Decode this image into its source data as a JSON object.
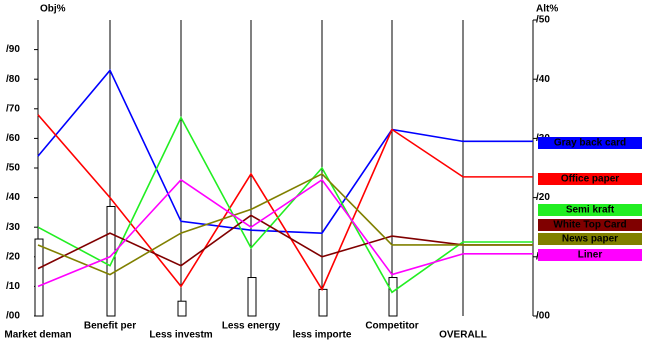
{
  "chart_data": {
    "type": "line",
    "y_label": "Obj%",
    "y2_label": "Alt%",
    "categories": [
      "Market deman",
      "Benefit per",
      "Less investm",
      "Less energy",
      "less importe",
      "Competitor",
      "OVERALL"
    ],
    "ylim": [
      0,
      100
    ],
    "yticks": [
      {
        "value": 0,
        "label": "/00"
      },
      {
        "value": 10,
        "label": "/10"
      },
      {
        "value": 20,
        "label": "/20"
      },
      {
        "value": 30,
        "label": "/30"
      },
      {
        "value": 40,
        "label": "/40"
      },
      {
        "value": 50,
        "label": "/50"
      },
      {
        "value": 60,
        "label": "/60"
      },
      {
        "value": 70,
        "label": "/70"
      },
      {
        "value": 80,
        "label": "/80"
      },
      {
        "value": 90,
        "label": "/90"
      }
    ],
    "y2lim": [
      0,
      50
    ],
    "y2ticks": [
      {
        "value": 0,
        "label": "/00"
      },
      {
        "value": 10,
        "label": "/10"
      },
      {
        "value": 20,
        "label": "/20"
      },
      {
        "value": 30,
        "label": "/30"
      },
      {
        "value": 40,
        "label": "/40"
      },
      {
        "value": 50,
        "label": "/50"
      }
    ],
    "bars": [
      26,
      37,
      5,
      13,
      9,
      13
    ],
    "series": [
      {
        "name": "Gray back card",
        "color": "#0000ff",
        "label_color": "#ffffff",
        "values": [
          54,
          83,
          32,
          29,
          28,
          63,
          59
        ]
      },
      {
        "name": "Office paper",
        "color": "#ff0000",
        "label_color": "#ffffff",
        "values": [
          68,
          40,
          10,
          48,
          9,
          63,
          47
        ]
      },
      {
        "name": "Semi kraft",
        "color": "#22ee22",
        "label_color": "#000000",
        "values": [
          30,
          17,
          67,
          23,
          50,
          8,
          25
        ]
      },
      {
        "name": "White Top Card",
        "color": "#800000",
        "label_color": "#ffffff",
        "values": [
          16,
          28,
          17,
          34,
          20,
          27,
          24
        ]
      },
      {
        "name": "News paper",
        "color": "#808000",
        "label_color": "#ffffff",
        "values": [
          24,
          14,
          28,
          36,
          48,
          24,
          24
        ]
      },
      {
        "name": "Liner",
        "color": "#ff00ff",
        "label_color": "#000000",
        "values": [
          10,
          20,
          46,
          30,
          46,
          14,
          21
        ]
      }
    ]
  }
}
